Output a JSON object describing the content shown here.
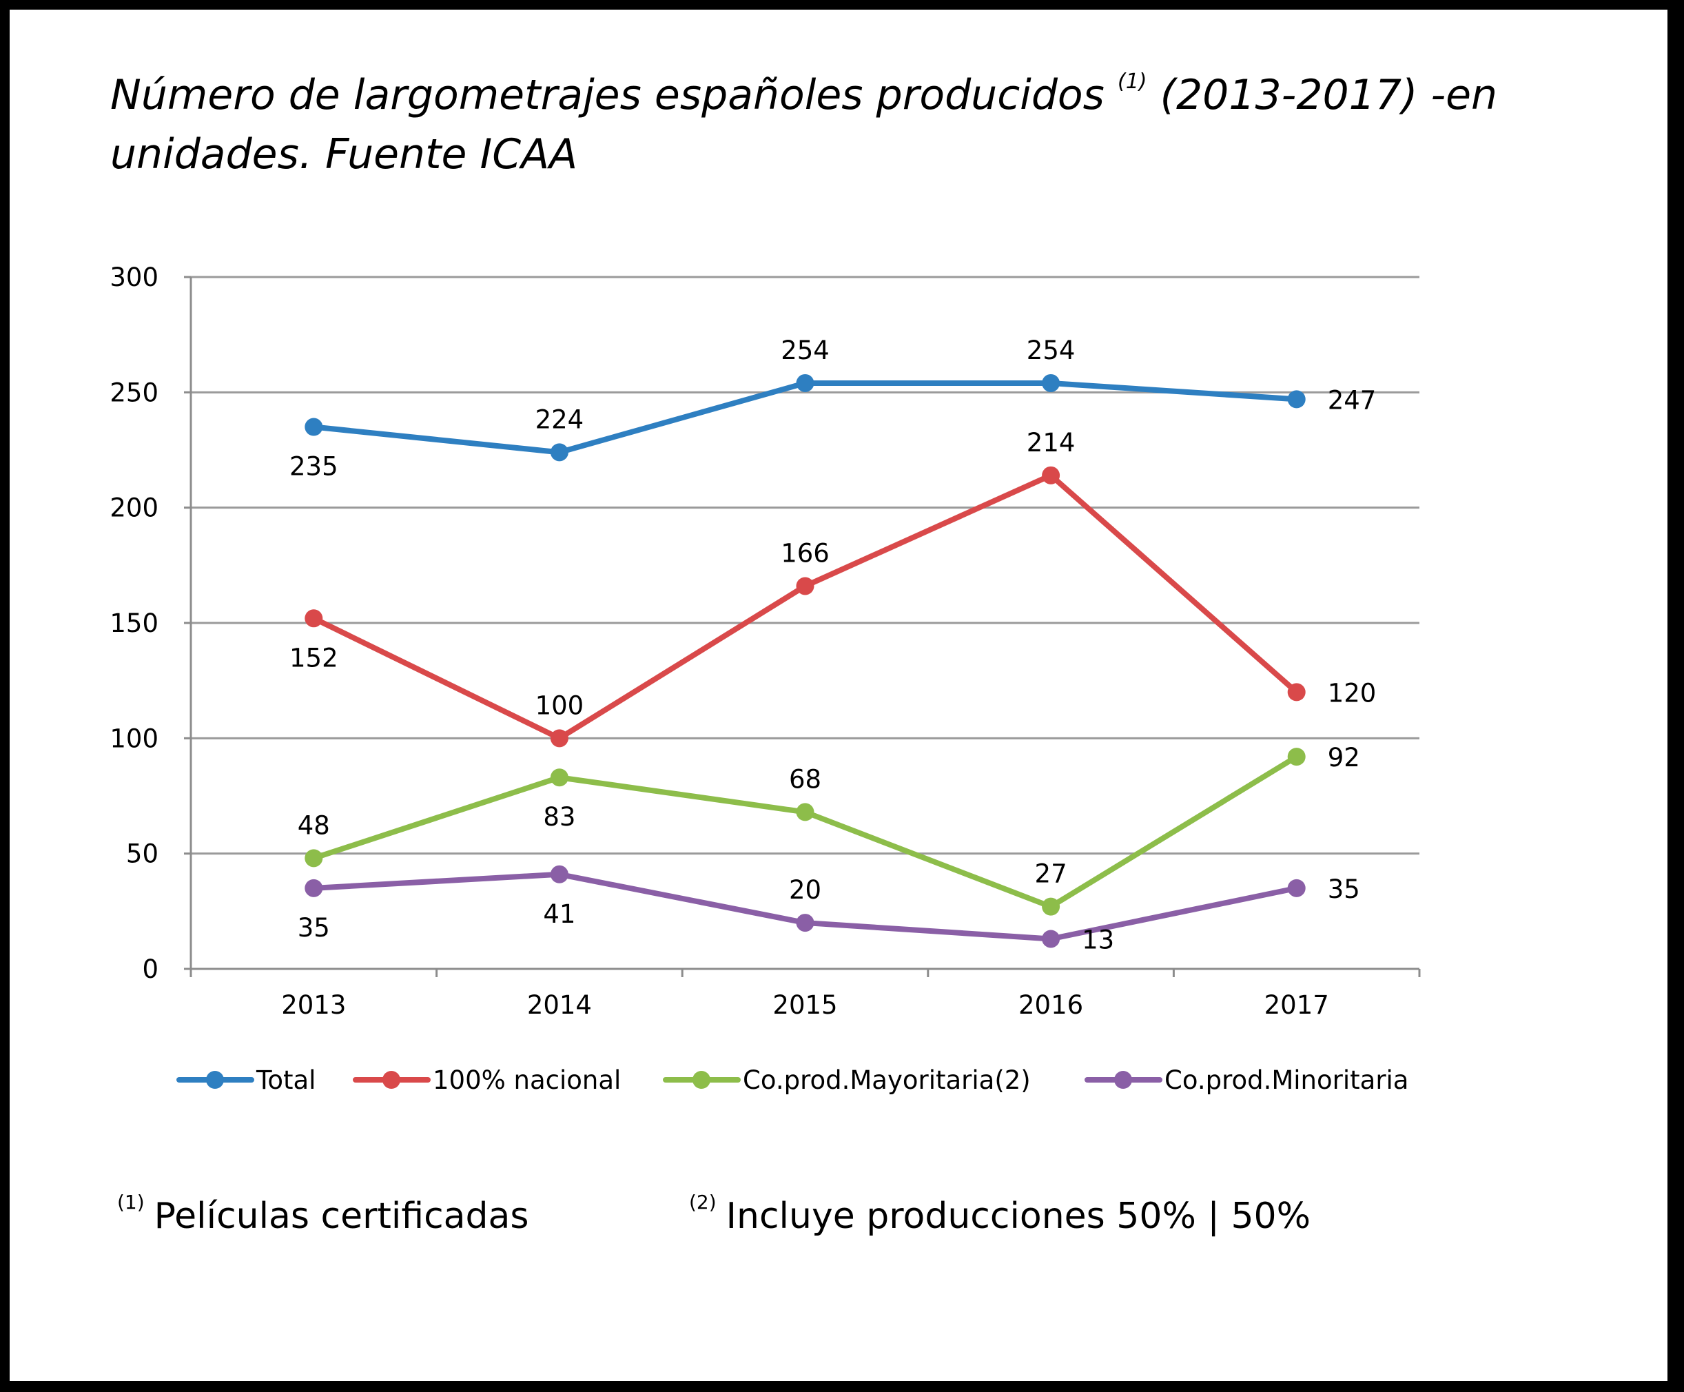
{
  "title_main": "Número de largometrajes españoles producidos",
  "title_sup": "(1)",
  "title_rest": "(2013-2017) -en unidades. Fuente ICAA",
  "footnotes": [
    {
      "mark": "(1)",
      "text": "Películas certificadas"
    },
    {
      "mark": "(2)",
      "text": "Incluye producciones 50% | 50%"
    }
  ],
  "chart_data": {
    "type": "line",
    "title": "Número de largometrajes españoles producidos (1) (2013-2017) -en unidades. Fuente ICAA",
    "categories": [
      "2013",
      "2014",
      "2015",
      "2016",
      "2017"
    ],
    "ylim": [
      0,
      300
    ],
    "yticks": [
      0,
      50,
      100,
      150,
      200,
      250,
      300
    ],
    "grid": true,
    "legend_position": "bottom",
    "series": [
      {
        "name": "Total",
        "color": "#2e7fc1",
        "values": [
          235,
          224,
          254,
          254,
          247
        ],
        "label_pos": [
          "below",
          "above",
          "above",
          "above",
          "right"
        ]
      },
      {
        "name": "100% nacional",
        "color": "#d9494a",
        "values": [
          152,
          100,
          166,
          214,
          120
        ],
        "label_pos": [
          "below",
          "above",
          "above",
          "above",
          "right"
        ]
      },
      {
        "name": "Co.prod.Mayoritaria(2)",
        "color": "#8dbd4a",
        "values": [
          48,
          83,
          68,
          27,
          92
        ],
        "label_pos": [
          "above",
          "below",
          "above",
          "above",
          "right"
        ]
      },
      {
        "name": "Co.prod.Minoritaria",
        "color": "#8a5fa6",
        "values": [
          35,
          41,
          20,
          13,
          35
        ],
        "label_pos": [
          "below",
          "below",
          "above",
          "below-right",
          "right"
        ]
      }
    ]
  }
}
